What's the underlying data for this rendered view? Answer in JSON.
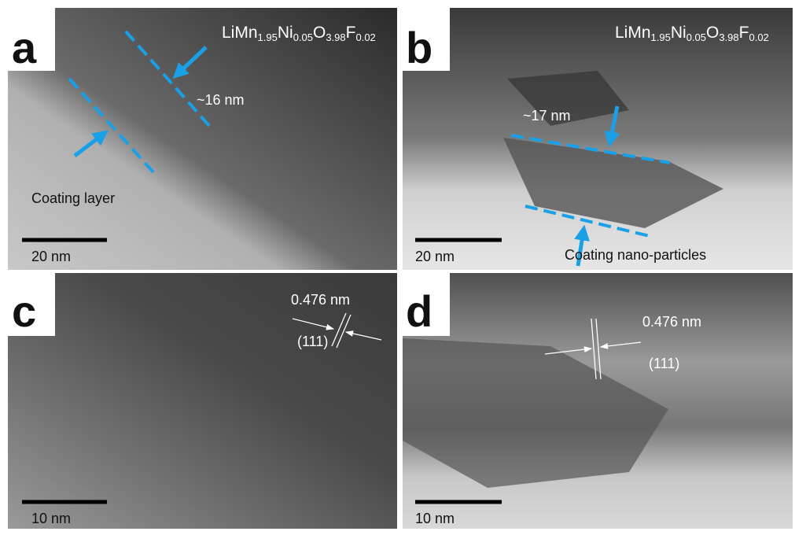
{
  "panels": [
    {
      "label": "a",
      "formula": [
        "LiMn",
        "1.95",
        "Ni",
        "0.05",
        "O",
        "3.98",
        "F",
        "0.02"
      ],
      "annotations": [
        "~16 nm",
        "Coating layer"
      ],
      "scale_bar": "20 nm"
    },
    {
      "label": "b",
      "formula": [
        "LiMn",
        "1.95",
        "Ni",
        "0.05",
        "O",
        "3.98",
        "F",
        "0.02"
      ],
      "annotations": [
        "~17 nm",
        "Coating nano-particles"
      ],
      "scale_bar": "20 nm"
    },
    {
      "label": "c",
      "annotations": [
        "0.476 nm",
        "(111)"
      ],
      "scale_bar": "10 nm"
    },
    {
      "label": "d",
      "annotations": [
        "0.476 nm",
        "(111)"
      ],
      "scale_bar": "10 nm"
    }
  ]
}
